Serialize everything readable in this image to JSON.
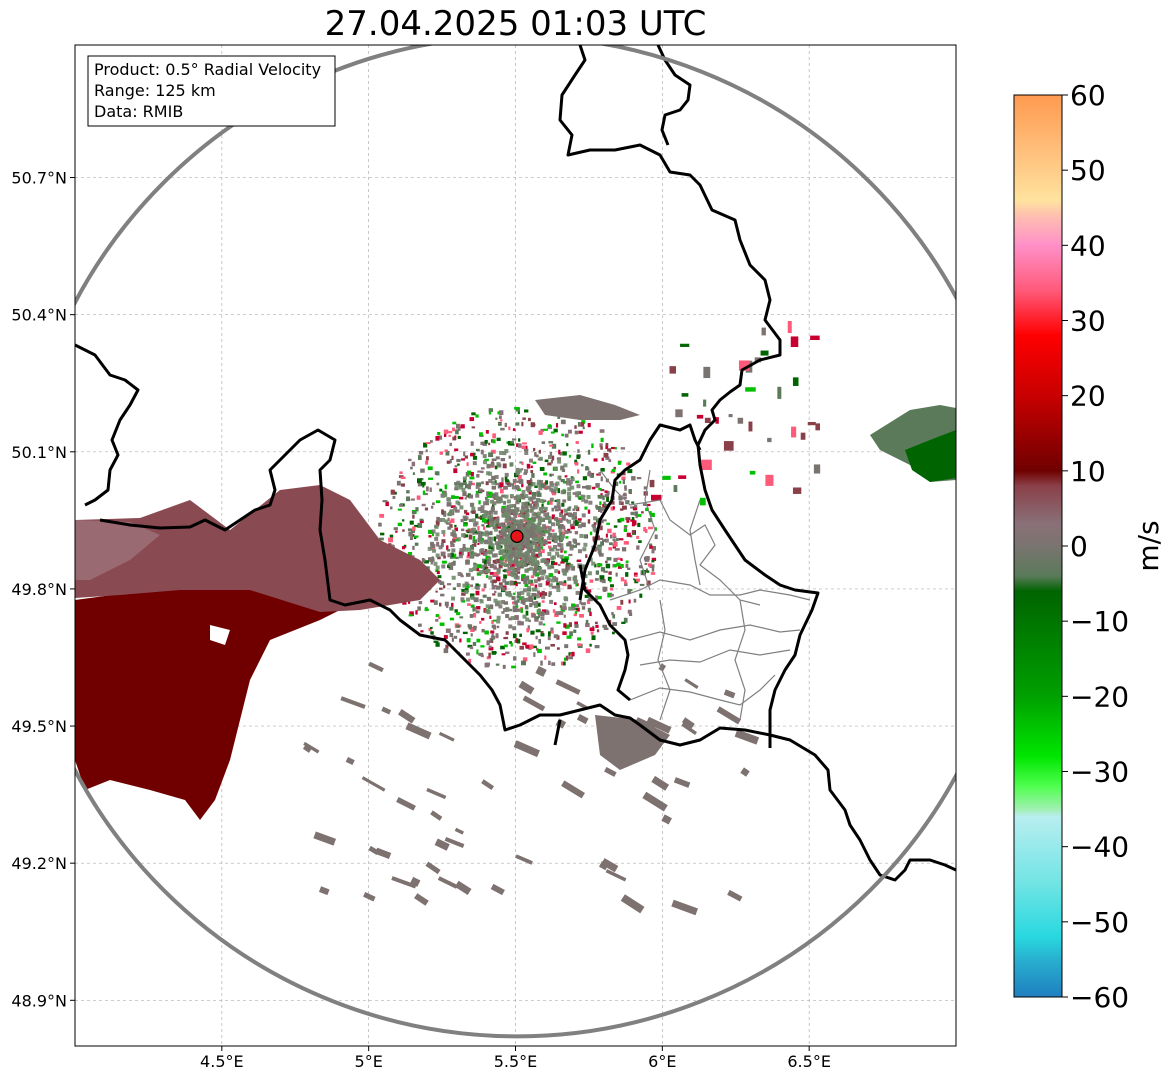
{
  "title": "27.04.2025 01:03 UTC",
  "info_box": {
    "product": "Product: 0.5° Radial Velocity",
    "range": "Range: 125 km",
    "data": "Data: RMIB"
  },
  "map": {
    "lon_range": [
      4.0,
      7.0
    ],
    "lat_range": [
      48.8,
      50.99
    ],
    "radar_site": {
      "lon": 5.505,
      "lat": 49.915
    },
    "range_km": 125,
    "x_ticks": [
      "4.5°E",
      "5°E",
      "5.5°E",
      "6°E",
      "6.5°E"
    ],
    "x_tick_values": [
      4.5,
      5.0,
      5.5,
      6.0,
      6.5
    ],
    "y_ticks": [
      "48.9°N",
      "49.2°N",
      "49.5°N",
      "49.8°N",
      "50.1°N",
      "50.4°N",
      "50.7°N"
    ],
    "y_tick_values": [
      48.9,
      49.2,
      49.5,
      49.8,
      50.1,
      50.4,
      50.7
    ],
    "grid": true,
    "colors": {
      "border": "#000000",
      "province": "#808080",
      "range_ring": "#808080",
      "radar_marker": "#e8151b",
      "grid": "#b0b0b0"
    }
  },
  "colorbar": {
    "label": "m/s",
    "min": -60,
    "max": 60,
    "tick_labels": [
      "60",
      "50",
      "40",
      "30",
      "20",
      "10",
      "0",
      "−10",
      "−20",
      "−30",
      "−40",
      "−50",
      "−60"
    ],
    "tick_values": [
      60,
      50,
      40,
      30,
      20,
      10,
      0,
      -10,
      -20,
      -30,
      -40,
      -50,
      -60
    ],
    "stops": [
      {
        "v": 60,
        "c": "#ff9a50"
      },
      {
        "v": 52,
        "c": "#ffc27e"
      },
      {
        "v": 46,
        "c": "#ffe39e"
      },
      {
        "v": 44,
        "c": "#ffc0b0"
      },
      {
        "v": 40,
        "c": "#ff90c8"
      },
      {
        "v": 34,
        "c": "#ff5a7a"
      },
      {
        "v": 28,
        "c": "#ff0000"
      },
      {
        "v": 20,
        "c": "#c80000"
      },
      {
        "v": 10,
        "c": "#700000"
      },
      {
        "v": 8,
        "c": "#8a4048"
      },
      {
        "v": 3,
        "c": "#8a7078"
      },
      {
        "v": 0,
        "c": "#7a7470"
      },
      {
        "v": -4,
        "c": "#5a7a5a"
      },
      {
        "v": -6,
        "c": "#006400"
      },
      {
        "v": -20,
        "c": "#00a000"
      },
      {
        "v": -28,
        "c": "#00e600"
      },
      {
        "v": -32,
        "c": "#50ff50"
      },
      {
        "v": -35,
        "c": "#a0f0b0"
      },
      {
        "v": -36,
        "c": "#b8eef0"
      },
      {
        "v": -45,
        "c": "#70e4e4"
      },
      {
        "v": -52,
        "c": "#28d8e0"
      },
      {
        "v": -55,
        "c": "#28b0d0"
      },
      {
        "v": -60,
        "c": "#1f7fbf"
      }
    ]
  }
}
